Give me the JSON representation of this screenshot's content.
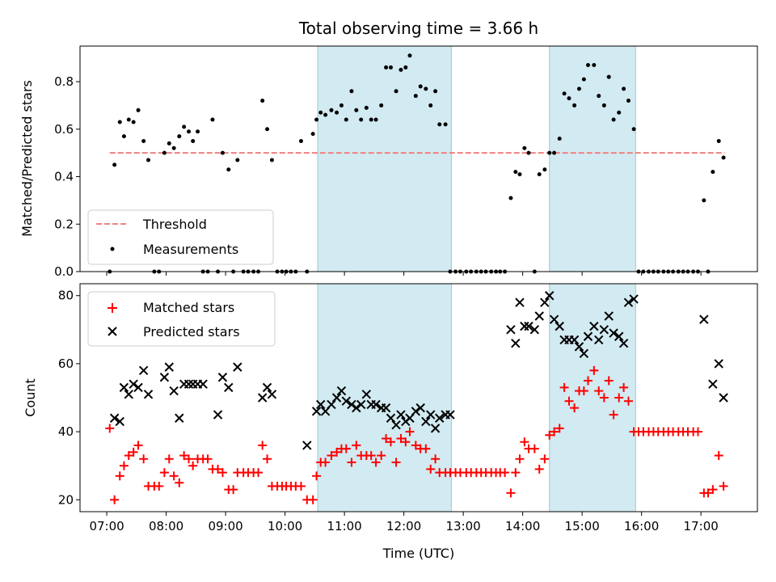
{
  "chart_data": [
    {
      "type": "scatter",
      "title": "Total observing time = 3.66 h",
      "ylabel": "Matched/Predicted stars",
      "ylim": [
        0,
        0.95
      ],
      "yticks": [
        0.0,
        0.2,
        0.4,
        0.6,
        0.8
      ],
      "ytick_labels": [
        "0.0",
        "0.2",
        "0.4",
        "0.6",
        "0.8"
      ],
      "xlim": [
        6.55,
        17.95
      ],
      "highlight_color": "#add8e6",
      "highlight_intervals": [
        [
          10.55,
          12.8
        ],
        [
          14.45,
          15.9
        ]
      ],
      "threshold": {
        "name": "Threshold",
        "value": 0.5,
        "x": [
          7.05,
          17.4
        ],
        "color": "#f08080"
      },
      "legend": {
        "placement": "lower-left",
        "entries": [
          "Threshold",
          "Measurements"
        ]
      },
      "series": [
        {
          "name": "Measurements",
          "marker": "dot",
          "color": "#000000",
          "x": [
            7.05,
            7.13,
            7.22,
            7.29,
            7.37,
            7.45,
            7.53,
            7.62,
            7.7,
            7.8,
            7.88,
            7.97,
            8.05,
            8.13,
            8.22,
            8.3,
            8.38,
            8.45,
            8.53,
            8.62,
            8.7,
            8.78,
            8.87,
            8.95,
            9.05,
            9.13,
            9.2,
            9.3,
            9.38,
            9.47,
            9.55,
            9.62,
            9.7,
            9.78,
            9.87,
            9.95,
            10.02,
            10.1,
            10.18,
            10.27,
            10.37,
            10.47,
            10.53,
            10.6,
            10.68,
            10.78,
            10.87,
            10.95,
            11.03,
            11.12,
            11.2,
            11.28,
            11.37,
            11.45,
            11.53,
            11.62,
            11.7,
            11.78,
            11.87,
            11.95,
            12.03,
            12.1,
            12.2,
            12.28,
            12.37,
            12.45,
            12.53,
            12.6,
            12.7,
            12.78,
            12.87,
            12.95,
            13.05,
            13.13,
            13.22,
            13.3,
            13.38,
            13.47,
            13.55,
            13.62,
            13.7,
            13.8,
            13.88,
            13.95,
            14.03,
            14.1,
            14.2,
            14.28,
            14.37,
            14.45,
            14.53,
            14.62,
            14.7,
            14.78,
            14.87,
            14.95,
            15.03,
            15.1,
            15.2,
            15.28,
            15.37,
            15.45,
            15.53,
            15.62,
            15.7,
            15.78,
            15.87,
            15.95,
            16.03,
            16.12,
            16.2,
            16.28,
            16.37,
            16.45,
            16.53,
            16.62,
            16.7,
            16.78,
            16.87,
            16.95,
            17.05,
            17.12,
            17.2,
            17.3,
            17.38
          ],
          "y": [
            0.0,
            0.45,
            0.63,
            0.57,
            0.64,
            0.63,
            0.68,
            0.55,
            0.47,
            0.0,
            0.0,
            0.5,
            0.54,
            0.52,
            0.57,
            0.61,
            0.59,
            0.55,
            0.59,
            0.0,
            0.0,
            0.64,
            0.0,
            0.5,
            0.43,
            0.0,
            0.47,
            0.0,
            0.0,
            0.0,
            0.0,
            0.72,
            0.6,
            0.47,
            0.0,
            0.0,
            0.0,
            0.0,
            0.0,
            0.55,
            0.0,
            0.58,
            0.64,
            0.67,
            0.66,
            0.68,
            0.67,
            0.7,
            0.64,
            0.76,
            0.68,
            0.64,
            0.69,
            0.64,
            0.64,
            0.7,
            0.86,
            0.86,
            0.76,
            0.85,
            0.86,
            0.91,
            0.74,
            0.78,
            0.77,
            0.7,
            0.76,
            0.62,
            0.62,
            0.0,
            0.0,
            0.0,
            0.0,
            0.0,
            0.0,
            0.0,
            0.0,
            0.0,
            0.0,
            0.0,
            0.0,
            0.31,
            0.42,
            0.41,
            0.52,
            0.5,
            0.0,
            0.41,
            0.43,
            0.5,
            0.5,
            0.56,
            0.75,
            0.73,
            0.7,
            0.77,
            0.81,
            0.87,
            0.87,
            0.74,
            0.7,
            0.82,
            0.64,
            0.67,
            0.77,
            0.72,
            0.6,
            0.0,
            0.0,
            0.0,
            0.0,
            0.0,
            0.0,
            0.0,
            0.0,
            0.0,
            0.0,
            0.0,
            0.0,
            0.0,
            0.3,
            0.0,
            0.42,
            0.55,
            0.48
          ]
        }
      ]
    },
    {
      "type": "scatter",
      "xlabel": "Time (UTC)",
      "ylabel": "Count",
      "ylim": [
        16.5,
        83.5
      ],
      "yticks": [
        20,
        40,
        60,
        80
      ],
      "ytick_labels": [
        "20",
        "40",
        "60",
        "80"
      ],
      "xlim": [
        6.55,
        17.95
      ],
      "xticks": [
        7,
        8,
        9,
        10,
        11,
        12,
        13,
        14,
        15,
        16,
        17
      ],
      "xtick_labels": [
        "07:00",
        "08:00",
        "09:00",
        "10:00",
        "11:00",
        "12:00",
        "13:00",
        "14:00",
        "15:00",
        "16:00",
        "17:00"
      ],
      "highlight_color": "#add8e6",
      "highlight_intervals": [
        [
          10.55,
          12.8
        ],
        [
          14.45,
          15.9
        ]
      ],
      "legend": {
        "placement": "top-left",
        "entries": [
          "Matched stars",
          "Predicted stars"
        ]
      },
      "series": [
        {
          "name": "Matched stars",
          "marker": "plus",
          "color": "#ff0000",
          "x": [
            7.05,
            7.13,
            7.22,
            7.29,
            7.37,
            7.45,
            7.53,
            7.62,
            7.7,
            7.8,
            7.88,
            7.97,
            8.05,
            8.13,
            8.22,
            8.3,
            8.38,
            8.45,
            8.53,
            8.62,
            8.7,
            8.78,
            8.87,
            8.95,
            9.05,
            9.13,
            9.2,
            9.3,
            9.38,
            9.47,
            9.55,
            9.62,
            9.7,
            9.78,
            9.87,
            9.95,
            10.02,
            10.1,
            10.18,
            10.27,
            10.37,
            10.47,
            10.53,
            10.6,
            10.68,
            10.78,
            10.87,
            10.95,
            11.03,
            11.12,
            11.2,
            11.28,
            11.37,
            11.45,
            11.53,
            11.62,
            11.7,
            11.78,
            11.87,
            11.95,
            12.03,
            12.1,
            12.2,
            12.28,
            12.37,
            12.45,
            12.53,
            12.6,
            12.7,
            12.78,
            12.87,
            12.95,
            13.05,
            13.13,
            13.22,
            13.3,
            13.38,
            13.47,
            13.55,
            13.62,
            13.7,
            13.8,
            13.88,
            13.95,
            14.03,
            14.1,
            14.2,
            14.28,
            14.37,
            14.45,
            14.53,
            14.62,
            14.7,
            14.78,
            14.87,
            14.95,
            15.03,
            15.1,
            15.2,
            15.28,
            15.37,
            15.45,
            15.53,
            15.62,
            15.7,
            15.78,
            15.87,
            15.95,
            16.03,
            16.12,
            16.2,
            16.28,
            16.37,
            16.45,
            16.53,
            16.62,
            16.7,
            16.78,
            16.87,
            16.95,
            17.05,
            17.12,
            17.2,
            17.3,
            17.38
          ],
          "y": [
            41,
            20,
            27,
            30,
            33,
            34,
            36,
            32,
            24,
            24,
            24,
            28,
            32,
            27,
            25,
            33,
            32,
            30,
            32,
            32,
            32,
            29,
            29,
            28,
            23,
            23,
            28,
            28,
            28,
            28,
            28,
            36,
            32,
            24,
            24,
            24,
            24,
            24,
            24,
            24,
            20,
            20,
            27,
            31,
            31,
            33,
            34,
            35,
            35,
            31,
            36,
            33,
            33,
            33,
            31,
            33,
            38,
            37,
            31,
            38,
            37,
            40,
            36,
            35,
            35,
            29,
            32,
            28,
            28,
            28,
            28,
            28,
            28,
            28,
            28,
            28,
            28,
            28,
            28,
            28,
            28,
            22,
            28,
            32,
            37,
            35,
            35,
            29,
            32,
            39,
            40,
            41,
            53,
            49,
            47,
            52,
            52,
            55,
            58,
            52,
            50,
            55,
            45,
            50,
            53,
            49,
            40,
            40,
            40,
            40,
            40,
            40,
            40,
            40,
            40,
            40,
            40,
            40,
            40,
            40,
            22,
            22,
            23,
            33,
            24
          ]
        },
        {
          "name": "Predicted stars",
          "marker": "x",
          "color": "#000000",
          "x": [
            7.13,
            7.22,
            7.29,
            7.37,
            7.45,
            7.53,
            7.62,
            7.7,
            7.97,
            8.05,
            8.13,
            8.22,
            8.3,
            8.38,
            8.45,
            8.53,
            8.62,
            8.87,
            8.95,
            9.05,
            9.2,
            9.62,
            9.7,
            9.78,
            10.37,
            10.53,
            10.6,
            10.68,
            10.78,
            10.87,
            10.95,
            11.03,
            11.12,
            11.2,
            11.28,
            11.37,
            11.45,
            11.53,
            11.62,
            11.7,
            11.78,
            11.87,
            11.95,
            12.03,
            12.1,
            12.2,
            12.28,
            12.37,
            12.45,
            12.53,
            12.6,
            12.7,
            12.78,
            13.8,
            13.88,
            13.95,
            14.03,
            14.1,
            14.2,
            14.28,
            14.37,
            14.45,
            14.53,
            14.62,
            14.7,
            14.78,
            14.87,
            14.95,
            15.03,
            15.1,
            15.2,
            15.28,
            15.37,
            15.45,
            15.53,
            15.62,
            15.7,
            15.78,
            15.87,
            17.05,
            17.2,
            17.3,
            17.38
          ],
          "y": [
            44,
            43,
            53,
            51,
            54,
            53,
            58,
            51,
            56,
            59,
            52,
            44,
            54,
            54,
            54,
            54,
            54,
            45,
            56,
            53,
            59,
            50,
            53,
            51,
            36,
            46,
            48,
            46,
            48,
            50,
            52,
            49,
            48,
            47,
            48,
            51,
            48,
            48,
            47,
            47,
            44,
            42,
            45,
            43,
            44,
            46,
            47,
            43,
            45,
            41,
            44,
            45,
            45,
            70,
            66,
            78,
            71,
            71,
            70,
            74,
            78,
            80,
            73,
            71,
            67,
            67,
            67,
            65,
            63,
            68,
            71,
            67,
            70,
            74,
            69,
            68,
            66,
            78,
            79,
            73,
            54,
            60,
            50
          ]
        }
      ]
    }
  ]
}
